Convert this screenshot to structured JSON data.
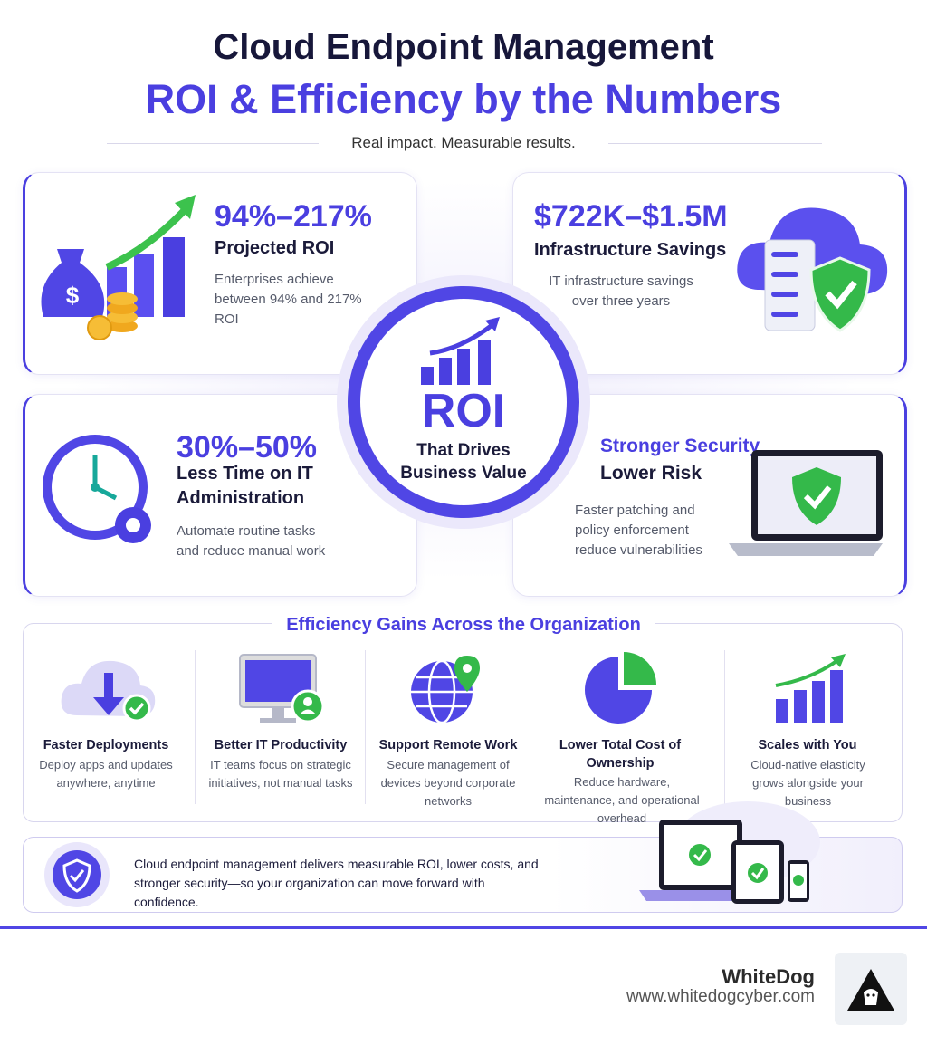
{
  "header": {
    "title": "Cloud Endpoint Management",
    "subtitle": "ROI & Efficiency by the Numbers",
    "tagline": "Real impact. Measurable results."
  },
  "center": {
    "label": "ROI",
    "caption": "That Drives Business Value"
  },
  "cards": [
    {
      "stat": "94%–217%",
      "title": "Projected ROI",
      "description": "Enterprises achieve between 94% and 217% ROI"
    },
    {
      "stat": "$722K–$1.5M",
      "title": "Infrastructure Savings",
      "description": "IT infrastructure savings over three years"
    },
    {
      "stat": "30%–50%",
      "title": "Less Time on IT Administration",
      "description": "Automate routine tasks and reduce manual work"
    },
    {
      "stat": "Stronger Security",
      "title": "Lower Risk",
      "description": "Faster patching and policy enforcement reduce vulnerabilities"
    }
  ],
  "efficiency": {
    "title": "Efficiency Gains Across the Organization",
    "items": [
      {
        "title": "Faster Deployments",
        "description": "Deploy apps and updates anywhere, anytime"
      },
      {
        "title": "Better IT Productivity",
        "description": "IT teams focus on strategic initiatives, not manual tasks"
      },
      {
        "title": "Support Remote Work",
        "description": "Secure management of devices beyond corporate networks"
      },
      {
        "title": "Lower Total Cost of Ownership",
        "description": "Reduce hardware, maintenance, and operational overhead"
      },
      {
        "title": "Scales with You",
        "description": "Cloud-native elasticity grows alongside your business"
      }
    ]
  },
  "banner": {
    "text": "Cloud endpoint management delivers measurable ROI, lower costs, and stronger security—so your organization can move forward with confidence."
  },
  "footer": {
    "brand": "WhiteDog",
    "url": "www.whitedogcyber.com"
  }
}
